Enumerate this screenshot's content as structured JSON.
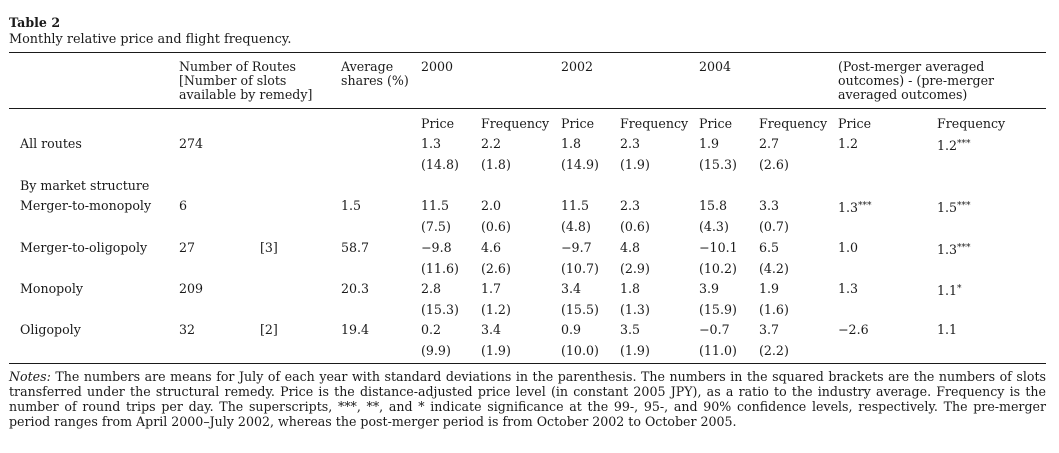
{
  "table": {
    "label": "Table 2",
    "caption": "Monthly relative price and flight frequency.",
    "headers": {
      "routes": "Number of Routes [Number of slots available by remedy]",
      "shares": "Average shares (%)",
      "y2000": "2000",
      "y2002": "2002",
      "y2004": "2004",
      "diff": "(Post-merger averaged outcomes) - (pre-merger averaged outcomes)",
      "price": "Price",
      "frequency": "Frequency"
    },
    "section_label": "By market structure",
    "rows": [
      {
        "label": "All routes",
        "routes": "274",
        "slots": "",
        "shares": "",
        "p2000": "1.3",
        "f2000": "2.2",
        "p2002": "1.8",
        "f2002": "2.3",
        "p2004": "1.9",
        "f2004": "2.7",
        "dp": "1.2",
        "df": "1.2***",
        "sdp2000": "(14.8)",
        "sdf2000": "(1.8)",
        "sdp2002": "(14.9)",
        "sdf2002": "(1.9)",
        "sdp2004": "(15.3)",
        "sdf2004": "(2.6)"
      },
      {
        "label": "Merger-to-monopoly",
        "routes": "6",
        "slots": "",
        "shares": "1.5",
        "p2000": "11.5",
        "f2000": "2.0",
        "p2002": "11.5",
        "f2002": "2.3",
        "p2004": "15.8",
        "f2004": "3.3",
        "dp": "1.3***",
        "df": "1.5***",
        "sdp2000": "(7.5)",
        "sdf2000": "(0.6)",
        "sdp2002": "(4.8)",
        "sdf2002": "(0.6)",
        "sdp2004": "(4.3)",
        "sdf2004": "(0.7)"
      },
      {
        "label": "Merger-to-oligopoly",
        "routes": "27",
        "slots": "[3]",
        "shares": "58.7",
        "p2000": "−9.8",
        "f2000": "4.6",
        "p2002": "−9.7",
        "f2002": "4.8",
        "p2004": "−10.1",
        "f2004": "6.5",
        "dp": "1.0",
        "df": "1.3***",
        "sdp2000": "(11.6)",
        "sdf2000": "(2.6)",
        "sdp2002": "(10.7)",
        "sdf2002": "(2.9)",
        "sdp2004": "(10.2)",
        "sdf2004": "(4.2)"
      },
      {
        "label": "Monopoly",
        "routes": "209",
        "slots": "",
        "shares": "20.3",
        "p2000": "2.8",
        "f2000": "1.7",
        "p2002": "3.4",
        "f2002": "1.8",
        "p2004": "3.9",
        "f2004": "1.9",
        "dp": "1.3",
        "df": "1.1*",
        "sdp2000": "(15.3)",
        "sdf2000": "(1.2)",
        "sdp2002": "(15.5)",
        "sdf2002": "(1.3)",
        "sdp2004": "(15.9)",
        "sdf2004": "(1.6)"
      },
      {
        "label": "Oligopoly",
        "routes": "32",
        "slots": "[2]",
        "shares": "19.4",
        "p2000": "0.2",
        "f2000": "3.4",
        "p2002": "0.9",
        "f2002": "3.5",
        "p2004": "−0.7",
        "f2004": "3.7",
        "dp": "−2.6",
        "df": "1.1",
        "sdp2000": "(9.9)",
        "sdf2000": "(1.9)",
        "sdp2002": "(10.0)",
        "sdf2002": "(1.9)",
        "sdp2004": "(11.0)",
        "sdf2004": "(2.2)"
      }
    ],
    "notes_label": "Notes:",
    "notes_text": "The numbers are means for July of each year with standard deviations in the parenthesis. The numbers in the squared brackets are the numbers of slots transferred under the structural remedy. Price is the distance-adjusted price level (in constant 2005 JPY), as a ratio to the industry average. Frequency is the number of round trips per day. The superscripts, ***, **, and * indicate significance at the 99-, 95-, and 90% confidence levels, respectively. The pre-merger period ranges from April 2000–July 2002, whereas the post-merger period is from October 2002 to October 2005."
  }
}
